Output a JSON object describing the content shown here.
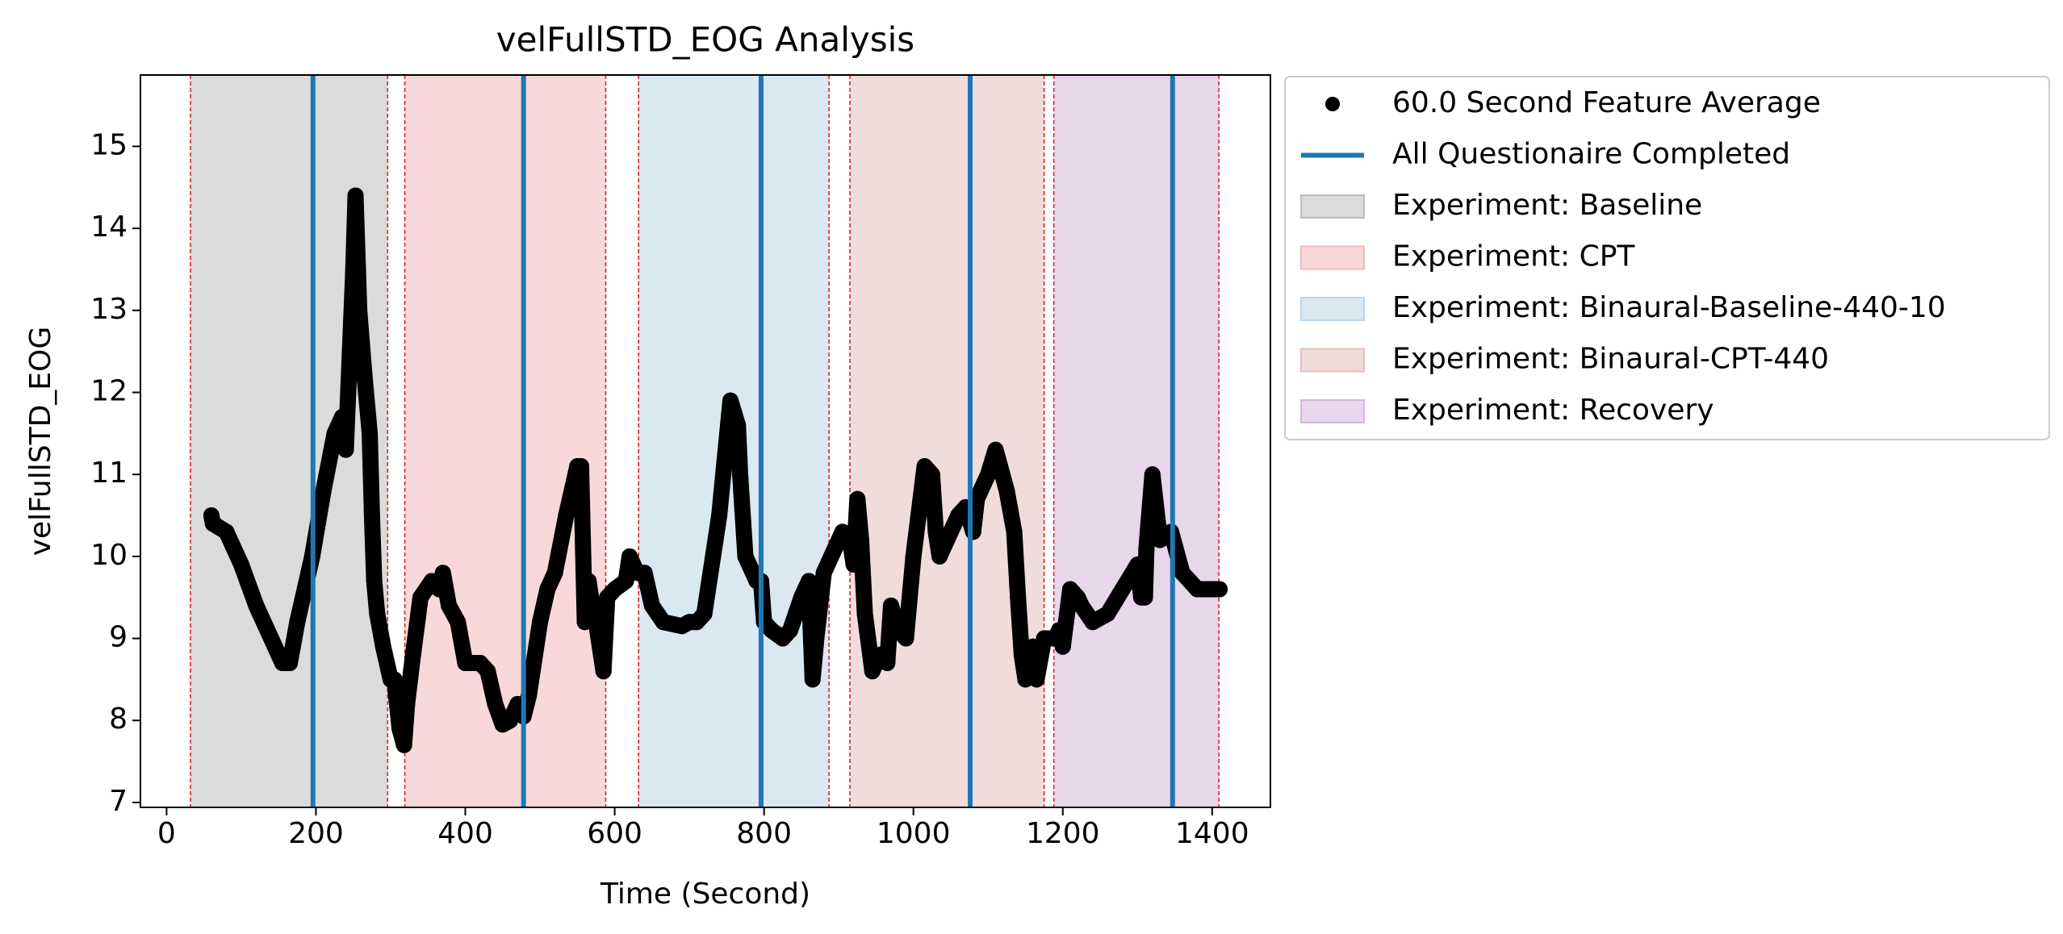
{
  "chart_data": {
    "type": "scatter",
    "title": "velFullSTD_EOG Analysis",
    "xlabel": "Time (Second)",
    "ylabel": "velFullSTD_EOG",
    "xlim": [
      -35,
      1478
    ],
    "ylim": [
      6.94,
      15.87
    ],
    "xticks": [
      0,
      200,
      400,
      600,
      800,
      1000,
      1200,
      1400
    ],
    "yticks": [
      7,
      8,
      9,
      10,
      11,
      12,
      13,
      14,
      15
    ],
    "legend": "upper left outside",
    "boundary_color": "#d62728",
    "spans": [
      {
        "name": "Experiment: Baseline",
        "color": "#bdbdbd",
        "x": [
          32,
          296
        ]
      },
      {
        "name": "Experiment: CPT",
        "color": "#f4b8bc",
        "x": [
          319,
          588
        ]
      },
      {
        "name": "Experiment: Binaural-Baseline-440-10",
        "color": "#bcd6e8",
        "x": [
          632,
          887
        ]
      },
      {
        "name": "Experiment: Binaural-CPT-440",
        "color": "#e2c0be",
        "x": [
          915,
          1175
        ]
      },
      {
        "name": "Experiment: Recovery",
        "color": "#d6b6db",
        "x": [
          1188,
          1409
        ]
      }
    ],
    "vlines": {
      "name": "All Questionaire Completed",
      "color": "#1f77b4",
      "x": [
        196,
        478,
        796,
        1076,
        1347
      ]
    },
    "series": [
      {
        "name": "60.0 Second Feature Average",
        "color": "#000000",
        "x": [
          60,
          62,
          80,
          100,
          120,
          140,
          150,
          155,
          165,
          175,
          185,
          195,
          210,
          225,
          235,
          240,
          245,
          250,
          253,
          258,
          265,
          272,
          275,
          278,
          282,
          290,
          300,
          305,
          312,
          318,
          322,
          330,
          340,
          355,
          365,
          370,
          378,
          390,
          400,
          420,
          430,
          440,
          450,
          460,
          470,
          478,
          485,
          500,
          510,
          520,
          535,
          550,
          555,
          560,
          565,
          570,
          575,
          585,
          590,
          600,
          615,
          620,
          630,
          640,
          650,
          665,
          690,
          700,
          710,
          720,
          740,
          755,
          765,
          768,
          775,
          790,
          796,
          800,
          810,
          825,
          835,
          850,
          860,
          865,
          870,
          880,
          895,
          905,
          915,
          920,
          925,
          930,
          935,
          945,
          955,
          965,
          970,
          980,
          990,
          1000,
          1015,
          1025,
          1030,
          1035,
          1045,
          1060,
          1070,
          1080,
          1085,
          1100,
          1110,
          1125,
          1135,
          1140,
          1145,
          1150,
          1155,
          1160,
          1165,
          1175,
          1190,
          1195,
          1200,
          1210,
          1220,
          1225,
          1240,
          1260,
          1280,
          1300,
          1305,
          1310,
          1312,
          1320,
          1330,
          1345,
          1360,
          1380,
          1400,
          1410
        ],
        "values": [
          10.5,
          10.4,
          10.3,
          9.9,
          9.4,
          9.0,
          8.8,
          8.7,
          8.7,
          9.2,
          9.6,
          10.0,
          10.8,
          11.5,
          11.7,
          11.3,
          12.4,
          13.5,
          14.4,
          13.0,
          12.2,
          11.5,
          10.5,
          9.7,
          9.3,
          8.9,
          8.5,
          8.5,
          7.9,
          7.7,
          8.2,
          8.8,
          9.5,
          9.7,
          9.6,
          9.8,
          9.4,
          9.2,
          8.7,
          8.7,
          8.6,
          8.2,
          7.95,
          8.0,
          8.2,
          8.05,
          8.3,
          9.2,
          9.6,
          9.8,
          10.5,
          11.1,
          11.1,
          9.2,
          9.7,
          9.4,
          9.2,
          8.6,
          9.5,
          9.6,
          9.7,
          10.0,
          9.8,
          9.8,
          9.4,
          9.2,
          9.15,
          9.2,
          9.2,
          9.3,
          10.5,
          11.9,
          11.6,
          11.0,
          10.0,
          9.7,
          9.7,
          9.2,
          9.1,
          9.0,
          9.1,
          9.5,
          9.7,
          8.5,
          9.0,
          9.8,
          10.1,
          10.3,
          10.2,
          9.9,
          10.7,
          10.2,
          9.3,
          8.6,
          8.8,
          8.7,
          9.4,
          9.1,
          9.0,
          10.0,
          11.1,
          11.0,
          10.3,
          10.0,
          10.2,
          10.5,
          10.6,
          10.3,
          10.7,
          11.0,
          11.3,
          10.8,
          10.3,
          9.5,
          8.8,
          8.5,
          8.6,
          8.9,
          8.5,
          9.0,
          9.0,
          9.1,
          8.9,
          9.6,
          9.5,
          9.4,
          9.2,
          9.3,
          9.6,
          9.9,
          9.5,
          9.5,
          10.1,
          11.0,
          10.2,
          10.3,
          9.8,
          9.6,
          9.6,
          9.6
        ]
      }
    ]
  }
}
